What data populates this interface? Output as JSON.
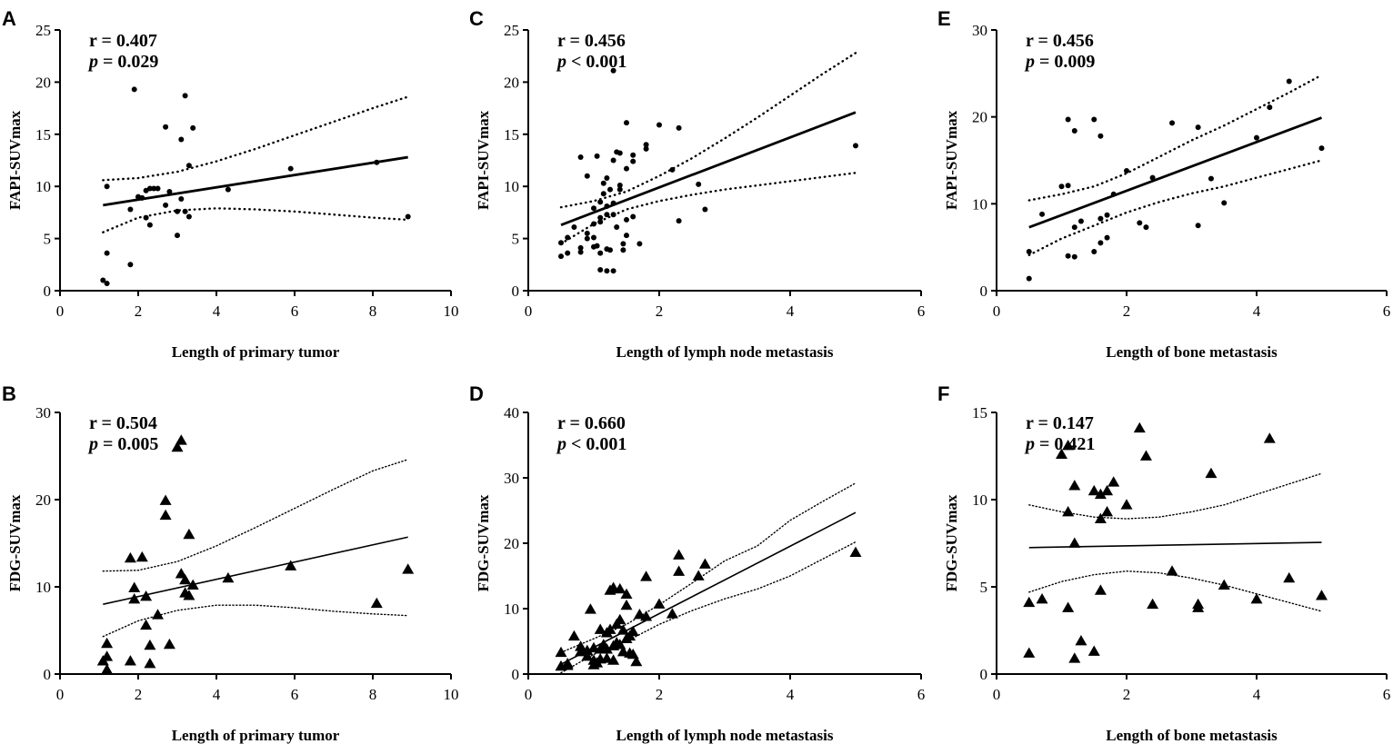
{
  "chart_data": [
    {
      "panel": "A",
      "type": "scatter",
      "marker": "circle",
      "xlabel": "Length of primary tumor",
      "ylabel": "FAPI-SUVmax",
      "xlim": [
        0,
        10
      ],
      "ylim": [
        0,
        25
      ],
      "xticks": [
        0,
        2,
        4,
        6,
        8,
        10
      ],
      "yticks": [
        0,
        5,
        10,
        15,
        20,
        25
      ],
      "stats": {
        "r_label": "r = 0.407",
        "p_sym": "p",
        "p_rest": " = 0.029"
      },
      "fit": {
        "x": [
          1.1,
          8.9
        ],
        "y": [
          8.2,
          12.8
        ]
      },
      "ci_upper": {
        "x": [
          1.1,
          2,
          3,
          4,
          5,
          6,
          7,
          8,
          8.9
        ],
        "y": [
          10.6,
          10.8,
          11.4,
          12.4,
          13.6,
          14.9,
          16.2,
          17.5,
          18.6
        ]
      },
      "ci_lower": {
        "x": [
          1.1,
          2,
          3,
          4,
          5,
          6,
          7,
          8,
          8.9
        ],
        "y": [
          5.6,
          7.0,
          7.7,
          7.9,
          7.8,
          7.6,
          7.3,
          7.0,
          6.8
        ]
      },
      "x": [
        1.1,
        1.2,
        1.2,
        1.2,
        1.8,
        1.9,
        1.8,
        2.0,
        2.1,
        2.2,
        2.2,
        2.3,
        2.3,
        2.4,
        2.5,
        2.7,
        2.7,
        2.8,
        3.0,
        3.0,
        3.1,
        3.1,
        3.2,
        3.2,
        3.3,
        3.3,
        3.4,
        4.3,
        5.9,
        8.1,
        8.9
      ],
      "y": [
        1.0,
        0.7,
        3.6,
        10.0,
        2.5,
        19.3,
        7.8,
        9.0,
        8.9,
        9.6,
        7.0,
        9.8,
        6.3,
        9.8,
        9.8,
        15.7,
        8.2,
        9.5,
        7.6,
        5.3,
        14.5,
        8.8,
        18.7,
        7.6,
        7.1,
        12.0,
        15.6,
        9.7,
        11.7,
        12.3,
        7.1
      ]
    },
    {
      "panel": "B",
      "type": "scatter",
      "marker": "triangle",
      "xlabel": "Length of primary tumor",
      "ylabel": "FDG-SUVmax",
      "xlim": [
        0,
        10
      ],
      "ylim": [
        0,
        30
      ],
      "xticks": [
        0,
        2,
        4,
        6,
        8,
        10
      ],
      "yticks": [
        0,
        10,
        20,
        30
      ],
      "stats": {
        "r_label": "r = 0.504",
        "p_sym": "p",
        "p_rest": " = 0.005"
      },
      "fit": {
        "x": [
          1.1,
          8.9
        ],
        "y": [
          8.0,
          15.7
        ]
      },
      "ci_upper": {
        "x": [
          1.1,
          2,
          3,
          4,
          5,
          6,
          7,
          8,
          8.9
        ],
        "y": [
          11.8,
          11.9,
          12.9,
          14.7,
          16.8,
          19.0,
          21.2,
          23.3,
          24.6
        ]
      },
      "ci_lower": {
        "x": [
          1.1,
          2,
          3,
          4,
          5,
          6,
          7,
          8,
          8.9
        ],
        "y": [
          4.3,
          6.1,
          7.3,
          7.9,
          7.9,
          7.6,
          7.2,
          6.9,
          6.7
        ]
      },
      "x": [
        1.1,
        1.2,
        1.2,
        1.2,
        1.8,
        1.8,
        1.9,
        1.9,
        2.1,
        2.2,
        2.2,
        2.3,
        2.3,
        2.5,
        2.7,
        2.7,
        2.8,
        3.0,
        3.1,
        3.1,
        3.2,
        3.2,
        3.3,
        3.3,
        3.4,
        4.3,
        5.9,
        8.1,
        8.9
      ],
      "y": [
        1.5,
        0.5,
        2.0,
        3.5,
        13.3,
        1.5,
        9.9,
        8.6,
        13.4,
        5.6,
        8.9,
        1.2,
        3.3,
        6.8,
        19.9,
        18.2,
        3.4,
        26.0,
        26.8,
        11.5,
        10.8,
        9.3,
        9.0,
        16.0,
        10.2,
        11.0,
        12.4,
        8.1,
        12.0
      ]
    },
    {
      "panel": "C",
      "type": "scatter",
      "marker": "circle",
      "xlabel": "Length of lymph node metastasis",
      "ylabel": "FAPI-SUVmax",
      "xlim": [
        0,
        6
      ],
      "ylim": [
        0,
        25
      ],
      "xticks": [
        0,
        2,
        4,
        6
      ],
      "yticks": [
        0,
        5,
        10,
        15,
        20,
        25
      ],
      "stats": {
        "r_label": "r = 0.456",
        "p_sym": "p",
        "p_rest": " < 0.001"
      },
      "fit": {
        "x": [
          0.5,
          5.0
        ],
        "y": [
          6.3,
          17.1
        ]
      },
      "ci_upper": {
        "x": [
          0.5,
          1,
          1.5,
          2,
          2.5,
          3,
          3.5,
          4,
          4.5,
          5
        ],
        "y": [
          8.0,
          8.6,
          9.5,
          11.0,
          12.7,
          14.6,
          16.6,
          18.7,
          20.8,
          22.8
        ]
      },
      "ci_lower": {
        "x": [
          0.5,
          1,
          1.5,
          2,
          2.5,
          3,
          3.5,
          4,
          4.5,
          5
        ],
        "y": [
          4.5,
          6.4,
          7.8,
          8.6,
          9.2,
          9.7,
          10.1,
          10.5,
          10.9,
          11.3
        ]
      },
      "x": [
        0.5,
        0.5,
        0.6,
        0.6,
        0.7,
        0.8,
        0.8,
        0.8,
        0.9,
        0.9,
        0.9,
        1.0,
        1.0,
        1.0,
        1.0,
        1.05,
        1.05,
        1.1,
        1.1,
        1.1,
        1.1,
        1.1,
        1.15,
        1.15,
        1.2,
        1.2,
        1.2,
        1.2,
        1.2,
        1.25,
        1.25,
        1.3,
        1.3,
        1.3,
        1.3,
        1.3,
        1.35,
        1.35,
        1.4,
        1.4,
        1.4,
        1.45,
        1.45,
        1.5,
        1.5,
        1.5,
        1.5,
        1.6,
        1.6,
        1.6,
        1.7,
        1.8,
        1.8,
        2.0,
        2.2,
        2.3,
        2.3,
        2.6,
        2.7,
        5.0
      ],
      "y": [
        3.3,
        4.6,
        5.1,
        3.6,
        6.1,
        12.8,
        4.1,
        3.7,
        5.5,
        5.0,
        11.0,
        6.4,
        5.1,
        4.2,
        7.9,
        12.9,
        4.3,
        8.5,
        7.0,
        6.6,
        3.6,
        2.0,
        9.3,
        10.3,
        8.1,
        7.3,
        4.0,
        10.8,
        1.9,
        9.7,
        3.9,
        21.1,
        12.5,
        8.4,
        7.3,
        1.9,
        6.1,
        13.3,
        10.1,
        9.7,
        13.2,
        4.5,
        3.9,
        16.1,
        11.7,
        6.8,
        5.3,
        13.0,
        12.4,
        7.1,
        4.5,
        13.6,
        14.0,
        15.9,
        11.6,
        15.6,
        6.7,
        10.2,
        7.8,
        13.9
      ]
    },
    {
      "panel": "D",
      "type": "scatter",
      "marker": "triangle",
      "xlabel": "Length of lymph node metastasis",
      "ylabel": "FDG-SUVmax",
      "xlim": [
        0,
        6
      ],
      "ylim": [
        0,
        40
      ],
      "xticks": [
        0,
        2,
        4,
        6
      ],
      "yticks": [
        0,
        10,
        20,
        30,
        40
      ],
      "stats": {
        "r_label": "r = 0.660",
        "p_sym": "p",
        "p_rest": " < 0.001"
      },
      "fit": {
        "x": [
          0.5,
          5.0
        ],
        "y": [
          1.5,
          24.7
        ]
      },
      "ci_upper": {
        "x": [
          0.5,
          1,
          1.5,
          2,
          2.5,
          3,
          3.5,
          4,
          4.5,
          5
        ],
        "y": [
          3.3,
          5.4,
          7.6,
          10.6,
          13.9,
          17.3,
          19.6,
          23.5,
          26.4,
          29.2
        ]
      },
      "ci_lower": {
        "x": [
          0.5,
          1,
          1.5,
          2,
          2.5,
          3,
          3.5,
          4,
          4.5,
          5
        ],
        "y": [
          0.2,
          3.0,
          5.0,
          7.6,
          9.7,
          11.5,
          13.0,
          15.0,
          17.6,
          20.2
        ]
      },
      "x": [
        0.5,
        0.5,
        0.6,
        0.6,
        0.7,
        0.8,
        0.8,
        0.9,
        0.9,
        0.95,
        1.0,
        1.0,
        1.0,
        1.05,
        1.1,
        1.1,
        1.1,
        1.15,
        1.2,
        1.2,
        1.2,
        1.25,
        1.25,
        1.3,
        1.3,
        1.3,
        1.35,
        1.35,
        1.4,
        1.4,
        1.4,
        1.45,
        1.45,
        1.5,
        1.5,
        1.5,
        1.55,
        1.55,
        1.6,
        1.6,
        1.65,
        1.7,
        1.8,
        1.8,
        2.0,
        2.2,
        2.3,
        2.3,
        2.6,
        2.7,
        5.0
      ],
      "y": [
        3.3,
        1.2,
        1.6,
        1.3,
        5.8,
        3.4,
        4.2,
        3.6,
        2.7,
        9.9,
        2.1,
        1.4,
        4.0,
        1.7,
        6.8,
        3.8,
        2.3,
        4.5,
        6.3,
        3.8,
        2.4,
        6.8,
        12.8,
        13.2,
        4.3,
        2.1,
        7.6,
        4.8,
        8.3,
        13.0,
        4.5,
        6.7,
        3.4,
        12.2,
        10.5,
        5.4,
        3.2,
        5.8,
        6.5,
        3.0,
        1.9,
        9.1,
        8.8,
        14.9,
        10.7,
        9.2,
        18.2,
        15.7,
        15.0,
        16.8,
        18.6
      ]
    },
    {
      "panel": "E",
      "type": "scatter",
      "marker": "circle",
      "xlabel": "Length of bone metastasis",
      "ylabel": "FAPI-SUVmax",
      "xlim": [
        0,
        6
      ],
      "ylim": [
        0,
        30
      ],
      "xticks": [
        0,
        2,
        4,
        6
      ],
      "yticks": [
        0,
        10,
        20,
        30
      ],
      "stats": {
        "r_label": "r = 0.456",
        "p_sym": "p",
        "p_rest": " = 0.009"
      },
      "fit": {
        "x": [
          0.5,
          5.0
        ],
        "y": [
          7.3,
          19.9
        ]
      },
      "ci_upper": {
        "x": [
          0.5,
          1,
          1.5,
          2,
          2.5,
          3,
          3.5,
          4,
          4.5,
          5
        ],
        "y": [
          10.4,
          11.1,
          12.0,
          13.5,
          15.4,
          17.3,
          19.0,
          20.9,
          22.8,
          24.8
        ]
      },
      "ci_lower": {
        "x": [
          0.5,
          1,
          1.5,
          2,
          2.5,
          3,
          3.5,
          4,
          4.5,
          5
        ],
        "y": [
          4.1,
          6.0,
          7.5,
          9.0,
          10.2,
          11.2,
          12.0,
          13.0,
          14.0,
          15.0
        ]
      },
      "x": [
        0.5,
        0.5,
        0.7,
        1.0,
        1.1,
        1.1,
        1.1,
        1.2,
        1.2,
        1.2,
        1.3,
        1.5,
        1.5,
        1.6,
        1.6,
        1.6,
        1.7,
        1.7,
        1.8,
        2.0,
        2.2,
        2.3,
        2.4,
        2.7,
        3.1,
        3.1,
        3.3,
        3.5,
        4.0,
        4.2,
        4.5,
        5.0
      ],
      "y": [
        4.5,
        1.4,
        8.8,
        12.0,
        19.7,
        12.1,
        4.0,
        7.3,
        18.4,
        3.9,
        8.0,
        19.7,
        4.5,
        17.8,
        8.3,
        5.5,
        8.7,
        6.1,
        11.1,
        13.8,
        7.8,
        7.3,
        13.0,
        19.3,
        18.8,
        7.5,
        12.9,
        10.1,
        17.6,
        21.1,
        24.1,
        16.4
      ]
    },
    {
      "panel": "F",
      "type": "scatter",
      "marker": "triangle",
      "xlabel": "Length of bone metastasis",
      "ylabel": "FDG-SUVmax",
      "xlim": [
        0,
        6
      ],
      "ylim": [
        0,
        15
      ],
      "xticks": [
        0,
        2,
        4,
        6
      ],
      "yticks": [
        0,
        5,
        10,
        15
      ],
      "stats": {
        "r_label": "r = 0.147",
        "p_sym": "p",
        "p_rest": " = 0.421"
      },
      "fit": {
        "x": [
          0.5,
          5.0
        ],
        "y": [
          7.25,
          7.55
        ]
      },
      "ci_upper": {
        "x": [
          0.5,
          1,
          1.5,
          2,
          2.5,
          3,
          3.5,
          4,
          4.5,
          5
        ],
        "y": [
          9.7,
          9.3,
          9.0,
          8.9,
          9.0,
          9.3,
          9.7,
          10.3,
          10.9,
          11.5
        ]
      },
      "ci_lower": {
        "x": [
          0.5,
          1,
          1.5,
          2,
          2.5,
          3,
          3.5,
          4,
          4.5,
          5
        ],
        "y": [
          4.7,
          5.3,
          5.7,
          5.9,
          5.8,
          5.5,
          5.1,
          4.6,
          4.1,
          3.6
        ]
      },
      "x": [
        0.5,
        0.5,
        0.7,
        1.0,
        1.1,
        1.1,
        1.1,
        1.2,
        1.2,
        1.2,
        1.3,
        1.5,
        1.5,
        1.6,
        1.6,
        1.6,
        1.7,
        1.7,
        1.8,
        2.0,
        2.2,
        2.3,
        2.4,
        2.7,
        3.1,
        3.1,
        3.3,
        3.5,
        4.0,
        4.2,
        4.5,
        5.0
      ],
      "y": [
        4.1,
        1.2,
        4.3,
        12.6,
        13.1,
        9.3,
        3.8,
        10.8,
        7.5,
        0.9,
        1.9,
        10.5,
        1.3,
        10.3,
        8.9,
        4.8,
        10.5,
        9.3,
        11.0,
        9.7,
        14.1,
        12.5,
        4.0,
        5.9,
        4.0,
        3.8,
        11.5,
        5.1,
        4.3,
        13.5,
        5.5,
        4.5
      ]
    }
  ]
}
